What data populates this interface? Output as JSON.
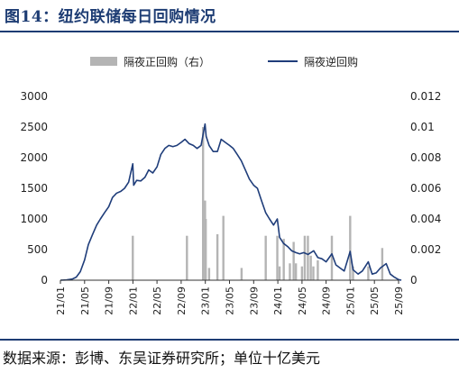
{
  "header": {
    "title": "图14：纽约联储每日回购情况"
  },
  "footer": {
    "source": "数据来源：彭博、东吴证券研究所；单位十亿美元"
  },
  "chart_data": {
    "type": "line",
    "title": "",
    "legend": {
      "placement": "top-center",
      "entries": [
        "隔夜正回购（右）",
        "隔夜逆回购"
      ]
    },
    "colors": {
      "line": "#1f3d7a",
      "bar": "#b4b4b4",
      "axis": "#333333"
    },
    "x_ticks": [
      "21/01",
      "21/05",
      "21/09",
      "22/01",
      "22/05",
      "22/09",
      "23/01",
      "23/05",
      "23/09",
      "24/01",
      "24/05",
      "24/09",
      "25/01",
      "25/05",
      "25/09"
    ],
    "xlim": [
      "2021-01",
      "2025-09"
    ],
    "y_left": {
      "ylim": [
        0,
        3000
      ],
      "ticks": [
        "0",
        "500",
        "1000",
        "1500",
        "2000",
        "2500",
        "3000"
      ]
    },
    "y_right": {
      "ylim": [
        0,
        0.012
      ],
      "ticks": [
        "0",
        "0.002",
        "0.004",
        "0.006",
        "0.008",
        "0.01",
        "0.012"
      ]
    },
    "grid": false,
    "series": [
      {
        "name": "隔夜逆回购",
        "type": "line",
        "axis": "left",
        "points": [
          [
            "2021-01-01",
            0
          ],
          [
            "2021-02-01",
            5
          ],
          [
            "2021-03-01",
            20
          ],
          [
            "2021-03-20",
            50
          ],
          [
            "2021-04-10",
            140
          ],
          [
            "2021-05-01",
            330
          ],
          [
            "2021-05-20",
            580
          ],
          [
            "2021-06-10",
            740
          ],
          [
            "2021-07-01",
            900
          ],
          [
            "2021-07-20",
            1000
          ],
          [
            "2021-08-10",
            1100
          ],
          [
            "2021-09-01",
            1200
          ],
          [
            "2021-09-20",
            1350
          ],
          [
            "2021-10-10",
            1420
          ],
          [
            "2021-11-01",
            1450
          ],
          [
            "2021-11-20",
            1500
          ],
          [
            "2021-12-10",
            1600
          ],
          [
            "2021-12-31",
            1900
          ],
          [
            "2022-01-05",
            1550
          ],
          [
            "2022-01-20",
            1630
          ],
          [
            "2022-02-10",
            1620
          ],
          [
            "2022-03-01",
            1680
          ],
          [
            "2022-03-20",
            1800
          ],
          [
            "2022-04-10",
            1750
          ],
          [
            "2022-05-01",
            1850
          ],
          [
            "2022-05-20",
            2050
          ],
          [
            "2022-06-10",
            2150
          ],
          [
            "2022-06-30",
            2200
          ],
          [
            "2022-07-20",
            2180
          ],
          [
            "2022-08-10",
            2200
          ],
          [
            "2022-09-01",
            2250
          ],
          [
            "2022-09-20",
            2300
          ],
          [
            "2022-10-10",
            2230
          ],
          [
            "2022-11-01",
            2200
          ],
          [
            "2022-11-20",
            2150
          ],
          [
            "2022-12-10",
            2200
          ],
          [
            "2022-12-30",
            2550
          ],
          [
            "2023-01-05",
            2350
          ],
          [
            "2023-01-20",
            2200
          ],
          [
            "2023-02-10",
            2100
          ],
          [
            "2023-03-01",
            2100
          ],
          [
            "2023-03-20",
            2300
          ],
          [
            "2023-04-10",
            2250
          ],
          [
            "2023-05-01",
            2200
          ],
          [
            "2023-05-20",
            2150
          ],
          [
            "2023-06-10",
            2050
          ],
          [
            "2023-06-30",
            1950
          ],
          [
            "2023-07-20",
            1800
          ],
          [
            "2023-08-10",
            1650
          ],
          [
            "2023-09-01",
            1550
          ],
          [
            "2023-09-20",
            1500
          ],
          [
            "2023-10-10",
            1300
          ],
          [
            "2023-11-01",
            1100
          ],
          [
            "2023-11-20",
            1000
          ],
          [
            "2023-12-10",
            900
          ],
          [
            "2023-12-29",
            1000
          ],
          [
            "2024-01-10",
            700
          ],
          [
            "2024-01-30",
            600
          ],
          [
            "2024-02-20",
            550
          ],
          [
            "2024-03-10",
            480
          ],
          [
            "2024-04-01",
            450
          ],
          [
            "2024-04-20",
            430
          ],
          [
            "2024-05-10",
            450
          ],
          [
            "2024-06-01",
            420
          ],
          [
            "2024-06-30",
            480
          ],
          [
            "2024-07-20",
            370
          ],
          [
            "2024-08-10",
            350
          ],
          [
            "2024-09-01",
            300
          ],
          [
            "2024-09-30",
            430
          ],
          [
            "2024-10-20",
            250
          ],
          [
            "2024-11-10",
            200
          ],
          [
            "2024-12-01",
            150
          ],
          [
            "2024-12-31",
            470
          ],
          [
            "2025-01-15",
            170
          ],
          [
            "2025-02-10",
            100
          ],
          [
            "2025-03-01",
            150
          ],
          [
            "2025-03-31",
            300
          ],
          [
            "2025-04-20",
            100
          ],
          [
            "2025-05-10",
            120
          ],
          [
            "2025-06-01",
            200
          ],
          [
            "2025-06-30",
            270
          ],
          [
            "2025-07-20",
            100
          ],
          [
            "2025-08-10",
            50
          ],
          [
            "2025-08-31",
            10
          ],
          [
            "2025-09-15",
            0
          ]
        ]
      },
      {
        "name": "隔夜正回购（右）",
        "type": "bar",
        "axis": "right",
        "points": [
          [
            "2021-12-31",
            0.0029
          ],
          [
            "2022-09-30",
            0.0029
          ],
          [
            "2022-12-20",
            0.01
          ],
          [
            "2022-12-30",
            0.0052
          ],
          [
            "2023-01-03",
            0.004
          ],
          [
            "2023-01-20",
            0.0008
          ],
          [
            "2023-03-01",
            0.003
          ],
          [
            "2023-03-31",
            0.0042
          ],
          [
            "2023-07-01",
            0.0008
          ],
          [
            "2023-11-01",
            0.0029
          ],
          [
            "2023-12-29",
            0.0029
          ],
          [
            "2024-01-10",
            0.0009
          ],
          [
            "2024-01-31",
            0.0027
          ],
          [
            "2024-03-01",
            0.0011
          ],
          [
            "2024-03-20",
            0.0025
          ],
          [
            "2024-04-01",
            0.0011
          ],
          [
            "2024-05-01",
            0.0009
          ],
          [
            "2024-05-15",
            0.0029
          ],
          [
            "2024-05-31",
            0.0029
          ],
          [
            "2024-06-15",
            0.0016
          ],
          [
            "2024-06-28",
            0.0009
          ],
          [
            "2024-07-20",
            0.0013
          ],
          [
            "2024-09-30",
            0.0029
          ],
          [
            "2024-12-31",
            0.0042
          ],
          [
            "2025-01-15",
            0.0009
          ],
          [
            "2025-03-31",
            0.0009
          ],
          [
            "2025-06-10",
            0.0021
          ]
        ]
      }
    ]
  }
}
